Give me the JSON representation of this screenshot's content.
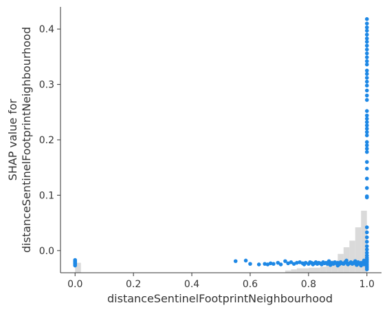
{
  "chart_data": {
    "type": "scatter",
    "title": "",
    "xlabel": "distanceSentinelFootprintNeighbourhood",
    "ylabel_lines": [
      "SHAP value for",
      "distanceSentinelFootprintNeighbourhood"
    ],
    "xlim": [
      -0.05,
      1.05
    ],
    "ylim": [
      -0.04,
      0.44
    ],
    "x_ticks": [
      0.0,
      0.2,
      0.4,
      0.6,
      0.8,
      1.0
    ],
    "x_tick_labels": [
      "0.0",
      "0.2",
      "0.4",
      "0.6",
      "0.8",
      "1.0"
    ],
    "y_ticks": [
      0.0,
      0.1,
      0.2,
      0.3,
      0.4
    ],
    "y_tick_labels": [
      "0.0",
      "0.1",
      "0.2",
      "0.3",
      "0.4"
    ],
    "grid": false,
    "point_color": "#1e88e5",
    "histogram_color": "#d3d3d3",
    "histogram": [
      {
        "x0": 0.0,
        "x1": 0.02,
        "height": 0.018
      },
      {
        "x0": 0.72,
        "x1": 0.74,
        "height": 0.004
      },
      {
        "x0": 0.74,
        "x1": 0.76,
        "height": 0.006
      },
      {
        "x0": 0.76,
        "x1": 0.8,
        "height": 0.008
      },
      {
        "x0": 0.8,
        "x1": 0.84,
        "height": 0.009
      },
      {
        "x0": 0.84,
        "x1": 0.86,
        "height": 0.011
      },
      {
        "x0": 0.86,
        "x1": 0.88,
        "height": 0.016
      },
      {
        "x0": 0.88,
        "x1": 0.9,
        "height": 0.022
      },
      {
        "x0": 0.9,
        "x1": 0.92,
        "height": 0.034
      },
      {
        "x0": 0.92,
        "x1": 0.94,
        "height": 0.046
      },
      {
        "x0": 0.94,
        "x1": 0.96,
        "height": 0.058
      },
      {
        "x0": 0.96,
        "x1": 0.98,
        "height": 0.082
      },
      {
        "x0": 0.98,
        "x1": 1.0,
        "height": 0.112
      }
    ],
    "points": [
      {
        "x": 0.0,
        "y": -0.017
      },
      {
        "x": 0.0,
        "y": -0.019
      },
      {
        "x": 0.0,
        "y": -0.021
      },
      {
        "x": 0.0,
        "y": -0.023
      },
      {
        "x": 0.0,
        "y": -0.025
      },
      {
        "x": 0.0,
        "y": -0.027
      },
      {
        "x": 0.55,
        "y": -0.019
      },
      {
        "x": 0.585,
        "y": -0.018
      },
      {
        "x": 0.6,
        "y": -0.024
      },
      {
        "x": 0.63,
        "y": -0.025
      },
      {
        "x": 0.65,
        "y": -0.024
      },
      {
        "x": 0.66,
        "y": -0.025
      },
      {
        "x": 0.67,
        "y": -0.023
      },
      {
        "x": 0.68,
        "y": -0.024
      },
      {
        "x": 0.695,
        "y": -0.022
      },
      {
        "x": 0.705,
        "y": -0.025
      },
      {
        "x": 0.72,
        "y": -0.019
      },
      {
        "x": 0.73,
        "y": -0.023
      },
      {
        "x": 0.74,
        "y": -0.021
      },
      {
        "x": 0.75,
        "y": -0.024
      },
      {
        "x": 0.76,
        "y": -0.022
      },
      {
        "x": 0.77,
        "y": -0.021
      },
      {
        "x": 0.78,
        "y": -0.023
      },
      {
        "x": 0.785,
        "y": -0.025
      },
      {
        "x": 0.79,
        "y": -0.022
      },
      {
        "x": 0.8,
        "y": -0.024
      },
      {
        "x": 0.805,
        "y": -0.021
      },
      {
        "x": 0.81,
        "y": -0.022
      },
      {
        "x": 0.815,
        "y": -0.025
      },
      {
        "x": 0.82,
        "y": -0.023
      },
      {
        "x": 0.825,
        "y": -0.021
      },
      {
        "x": 0.83,
        "y": -0.024
      },
      {
        "x": 0.835,
        "y": -0.022
      },
      {
        "x": 0.84,
        "y": -0.023
      },
      {
        "x": 0.845,
        "y": -0.025
      },
      {
        "x": 0.85,
        "y": -0.021
      },
      {
        "x": 0.855,
        "y": -0.023
      },
      {
        "x": 0.86,
        "y": -0.022
      },
      {
        "x": 0.865,
        "y": -0.024
      },
      {
        "x": 0.87,
        "y": -0.021
      },
      {
        "x": 0.875,
        "y": -0.026
      },
      {
        "x": 0.88,
        "y": -0.022
      },
      {
        "x": 0.885,
        "y": -0.024
      },
      {
        "x": 0.89,
        "y": -0.021
      },
      {
        "x": 0.895,
        "y": -0.023
      },
      {
        "x": 0.9,
        "y": -0.022
      },
      {
        "x": 0.905,
        "y": -0.025
      },
      {
        "x": 0.91,
        "y": -0.021
      },
      {
        "x": 0.915,
        "y": -0.023
      },
      {
        "x": 0.92,
        "y": -0.024
      },
      {
        "x": 0.925,
        "y": -0.021
      },
      {
        "x": 0.93,
        "y": -0.022
      },
      {
        "x": 0.935,
        "y": -0.025
      },
      {
        "x": 0.94,
        "y": -0.023
      },
      {
        "x": 0.945,
        "y": -0.021
      },
      {
        "x": 0.95,
        "y": -0.024
      },
      {
        "x": 0.955,
        "y": -0.022
      },
      {
        "x": 0.96,
        "y": -0.023
      },
      {
        "x": 0.965,
        "y": -0.026
      },
      {
        "x": 0.97,
        "y": -0.021
      },
      {
        "x": 0.975,
        "y": -0.024
      },
      {
        "x": 0.98,
        "y": -0.022
      },
      {
        "x": 0.985,
        "y": -0.023
      },
      {
        "x": 0.99,
        "y": -0.025
      },
      {
        "x": 0.995,
        "y": -0.021
      },
      {
        "x": 0.9,
        "y": -0.027
      },
      {
        "x": 0.87,
        "y": -0.019
      },
      {
        "x": 0.93,
        "y": -0.018
      },
      {
        "x": 0.96,
        "y": -0.019
      },
      {
        "x": 0.98,
        "y": -0.027
      },
      {
        "x": 0.99,
        "y": -0.018
      },
      {
        "x": 1.0,
        "y": 0.418
      },
      {
        "x": 1.0,
        "y": 0.41
      },
      {
        "x": 1.0,
        "y": 0.403
      },
      {
        "x": 1.0,
        "y": 0.397
      },
      {
        "x": 1.0,
        "y": 0.39
      },
      {
        "x": 1.0,
        "y": 0.383
      },
      {
        "x": 1.0,
        "y": 0.377
      },
      {
        "x": 1.0,
        "y": 0.37
      },
      {
        "x": 1.0,
        "y": 0.363
      },
      {
        "x": 1.0,
        "y": 0.356
      },
      {
        "x": 1.0,
        "y": 0.349
      },
      {
        "x": 1.0,
        "y": 0.342
      },
      {
        "x": 1.0,
        "y": 0.336
      },
      {
        "x": 1.0,
        "y": 0.325
      },
      {
        "x": 1.0,
        "y": 0.319
      },
      {
        "x": 1.0,
        "y": 0.312
      },
      {
        "x": 1.0,
        "y": 0.305
      },
      {
        "x": 1.0,
        "y": 0.298
      },
      {
        "x": 1.0,
        "y": 0.289
      },
      {
        "x": 1.0,
        "y": 0.28
      },
      {
        "x": 1.0,
        "y": 0.272
      },
      {
        "x": 1.0,
        "y": 0.252
      },
      {
        "x": 1.0,
        "y": 0.244
      },
      {
        "x": 1.0,
        "y": 0.238
      },
      {
        "x": 1.0,
        "y": 0.232
      },
      {
        "x": 1.0,
        "y": 0.226
      },
      {
        "x": 1.0,
        "y": 0.22
      },
      {
        "x": 1.0,
        "y": 0.214
      },
      {
        "x": 1.0,
        "y": 0.208
      },
      {
        "x": 1.0,
        "y": 0.196
      },
      {
        "x": 1.0,
        "y": 0.19
      },
      {
        "x": 1.0,
        "y": 0.184
      },
      {
        "x": 1.0,
        "y": 0.178
      },
      {
        "x": 1.0,
        "y": 0.16
      },
      {
        "x": 1.0,
        "y": 0.148
      },
      {
        "x": 1.0,
        "y": 0.13
      },
      {
        "x": 1.0,
        "y": 0.113
      },
      {
        "x": 1.0,
        "y": 0.098
      },
      {
        "x": 1.0,
        "y": 0.096
      },
      {
        "x": 1.0,
        "y": 0.042
      },
      {
        "x": 1.0,
        "y": 0.033
      },
      {
        "x": 1.0,
        "y": 0.024
      },
      {
        "x": 1.0,
        "y": 0.016
      },
      {
        "x": 1.0,
        "y": 0.008
      },
      {
        "x": 1.0,
        "y": 0.002
      },
      {
        "x": 1.0,
        "y": -0.004
      },
      {
        "x": 1.0,
        "y": -0.009
      },
      {
        "x": 1.0,
        "y": -0.013
      },
      {
        "x": 1.0,
        "y": -0.016
      },
      {
        "x": 1.0,
        "y": -0.019
      },
      {
        "x": 1.0,
        "y": -0.022
      },
      {
        "x": 1.0,
        "y": -0.025
      },
      {
        "x": 1.0,
        "y": -0.028
      },
      {
        "x": 1.0,
        "y": -0.031
      },
      {
        "x": 1.0,
        "y": -0.034
      }
    ]
  }
}
